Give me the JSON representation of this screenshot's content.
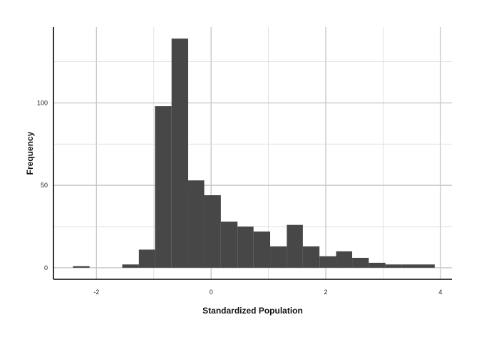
{
  "chart_data": {
    "type": "bar",
    "subtype": "histogram",
    "xlabel": "Standardized Population",
    "ylabel": "Frequency",
    "xlim": [
      -2.75,
      4.2
    ],
    "ylim": [
      -7,
      146
    ],
    "x_ticks": [
      -2,
      0,
      2,
      4
    ],
    "y_ticks": [
      0,
      50,
      100
    ],
    "grid": true,
    "bar_color": "#474747",
    "bins": [
      {
        "x0": -2.41,
        "x1": -2.12,
        "count": 1
      },
      {
        "x0": -2.12,
        "x1": -1.84,
        "count": 0
      },
      {
        "x0": -1.84,
        "x1": -1.55,
        "count": 0
      },
      {
        "x0": -1.55,
        "x1": -1.26,
        "count": 2
      },
      {
        "x0": -1.26,
        "x1": -0.98,
        "count": 11
      },
      {
        "x0": -0.98,
        "x1": -0.69,
        "count": 98
      },
      {
        "x0": -0.69,
        "x1": -0.4,
        "count": 139
      },
      {
        "x0": -0.4,
        "x1": -0.12,
        "count": 53
      },
      {
        "x0": -0.12,
        "x1": 0.17,
        "count": 44
      },
      {
        "x0": 0.17,
        "x1": 0.46,
        "count": 28
      },
      {
        "x0": 0.46,
        "x1": 0.74,
        "count": 25
      },
      {
        "x0": 0.74,
        "x1": 1.03,
        "count": 22
      },
      {
        "x0": 1.03,
        "x1": 1.32,
        "count": 13
      },
      {
        "x0": 1.32,
        "x1": 1.6,
        "count": 26
      },
      {
        "x0": 1.6,
        "x1": 1.89,
        "count": 13
      },
      {
        "x0": 1.89,
        "x1": 2.18,
        "count": 7
      },
      {
        "x0": 2.18,
        "x1": 2.46,
        "count": 10
      },
      {
        "x0": 2.46,
        "x1": 2.75,
        "count": 6
      },
      {
        "x0": 2.75,
        "x1": 3.04,
        "count": 3
      },
      {
        "x0": 3.04,
        "x1": 3.32,
        "count": 2
      },
      {
        "x0": 3.32,
        "x1": 3.61,
        "count": 2
      },
      {
        "x0": 3.61,
        "x1": 3.9,
        "count": 2
      }
    ]
  }
}
